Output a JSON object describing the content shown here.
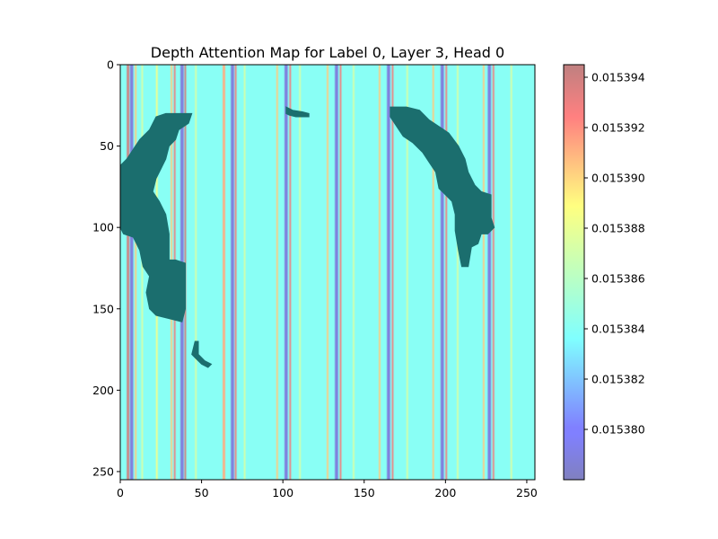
{
  "chart_data": {
    "type": "heatmap",
    "title": "Depth Attention Map for Label 0, Layer 3, Head 0",
    "xlabel": "",
    "ylabel": "",
    "xlim": [
      0,
      255
    ],
    "ylim": [
      255,
      0
    ],
    "x_ticks": [
      0,
      50,
      100,
      150,
      200,
      250
    ],
    "y_ticks": [
      0,
      50,
      100,
      150,
      200,
      250
    ],
    "grid": false,
    "colormap": "jet",
    "alpha": 0.5,
    "colorbar": {
      "min": 0.015378,
      "max": 0.0153945,
      "ticks": [
        0.01538,
        0.015382,
        0.015384,
        0.015386,
        0.015388,
        0.01539,
        0.015392,
        0.015394
      ],
      "tick_labels": [
        "0.015380",
        "0.015382",
        "0.015384",
        "0.015386",
        "0.015388",
        "0.015390",
        "0.015392",
        "0.015394"
      ]
    },
    "background_value": 0.0153845,
    "stripes": [
      {
        "x": 4,
        "w": 1.5,
        "v": 0.015394
      },
      {
        "x": 6,
        "w": 2,
        "v": 0.015379
      },
      {
        "x": 9,
        "w": 1,
        "v": 0.01539
      },
      {
        "x": 13,
        "w": 1,
        "v": 0.015387
      },
      {
        "x": 22,
        "w": 1,
        "v": 0.015388
      },
      {
        "x": 31,
        "w": 1,
        "v": 0.01539
      },
      {
        "x": 33,
        "w": 1,
        "v": 0.015393
      },
      {
        "x": 37,
        "w": 2,
        "v": 0.015379
      },
      {
        "x": 39.5,
        "w": 1,
        "v": 0.015394
      },
      {
        "x": 46,
        "w": 1,
        "v": 0.015387
      },
      {
        "x": 63,
        "w": 1.5,
        "v": 0.015391
      },
      {
        "x": 68,
        "w": 2,
        "v": 0.015379
      },
      {
        "x": 70.5,
        "w": 1,
        "v": 0.015393
      },
      {
        "x": 76,
        "w": 1,
        "v": 0.015387
      },
      {
        "x": 96,
        "w": 1,
        "v": 0.01539
      },
      {
        "x": 101,
        "w": 2,
        "v": 0.015379
      },
      {
        "x": 104,
        "w": 1,
        "v": 0.015393
      },
      {
        "x": 110,
        "w": 1,
        "v": 0.015387
      },
      {
        "x": 127,
        "w": 1,
        "v": 0.01539
      },
      {
        "x": 132,
        "w": 2,
        "v": 0.015379
      },
      {
        "x": 135,
        "w": 1,
        "v": 0.015393
      },
      {
        "x": 143,
        "w": 1,
        "v": 0.015387
      },
      {
        "x": 159,
        "w": 1,
        "v": 0.01539
      },
      {
        "x": 164,
        "w": 2,
        "v": 0.015379
      },
      {
        "x": 167,
        "w": 1,
        "v": 0.015393
      },
      {
        "x": 176,
        "w": 1,
        "v": 0.015387
      },
      {
        "x": 192,
        "w": 1,
        "v": 0.01539
      },
      {
        "x": 197,
        "w": 2,
        "v": 0.015379
      },
      {
        "x": 200,
        "w": 1,
        "v": 0.015393
      },
      {
        "x": 207,
        "w": 1,
        "v": 0.015387
      },
      {
        "x": 223,
        "w": 1,
        "v": 0.01539
      },
      {
        "x": 226,
        "w": 2,
        "v": 0.015379
      },
      {
        "x": 229,
        "w": 1,
        "v": 0.015393
      },
      {
        "x": 240,
        "w": 1,
        "v": 0.015387
      }
    ],
    "overlay_regions": [
      {
        "name": "left-arc",
        "color": "#1b6e6e",
        "points": [
          [
            12,
            46
          ],
          [
            18,
            40
          ],
          [
            22,
            32
          ],
          [
            28,
            30
          ],
          [
            40,
            30
          ],
          [
            44,
            30
          ],
          [
            42,
            36
          ],
          [
            36,
            40
          ],
          [
            34,
            46
          ],
          [
            30,
            50
          ],
          [
            28,
            58
          ],
          [
            25,
            64
          ],
          [
            22,
            70
          ],
          [
            20,
            78
          ],
          [
            24,
            84
          ],
          [
            28,
            92
          ],
          [
            30,
            104
          ],
          [
            30,
            112
          ],
          [
            30,
            120
          ],
          [
            34,
            120
          ],
          [
            40,
            122
          ],
          [
            40,
            136
          ],
          [
            40,
            150
          ],
          [
            38,
            158
          ],
          [
            30,
            156
          ],
          [
            22,
            154
          ],
          [
            18,
            150
          ],
          [
            16,
            140
          ],
          [
            18,
            130
          ],
          [
            14,
            124
          ],
          [
            12,
            114
          ],
          [
            8,
            106
          ],
          [
            2,
            104
          ],
          [
            0,
            100
          ],
          [
            0,
            62
          ],
          [
            4,
            58
          ],
          [
            8,
            52
          ]
        ]
      },
      {
        "name": "small-fleck-top",
        "color": "#1b6e6e",
        "points": [
          [
            102,
            26
          ],
          [
            106,
            28
          ],
          [
            112,
            29
          ],
          [
            116,
            30
          ],
          [
            116,
            32
          ],
          [
            108,
            32
          ],
          [
            104,
            31
          ],
          [
            102,
            30
          ]
        ]
      },
      {
        "name": "right-arc",
        "color": "#1b6e6e",
        "points": [
          [
            166,
            26
          ],
          [
            176,
            26
          ],
          [
            184,
            28
          ],
          [
            190,
            34
          ],
          [
            196,
            38
          ],
          [
            202,
            42
          ],
          [
            208,
            50
          ],
          [
            212,
            58
          ],
          [
            214,
            66
          ],
          [
            218,
            74
          ],
          [
            222,
            78
          ],
          [
            228,
            80
          ],
          [
            228,
            94
          ],
          [
            230,
            100
          ],
          [
            226,
            104
          ],
          [
            222,
            104
          ],
          [
            220,
            110
          ],
          [
            216,
            112
          ],
          [
            214,
            124
          ],
          [
            210,
            124
          ],
          [
            208,
            114
          ],
          [
            206,
            102
          ],
          [
            206,
            92
          ],
          [
            204,
            84
          ],
          [
            200,
            80
          ],
          [
            196,
            76
          ],
          [
            194,
            66
          ],
          [
            190,
            60
          ],
          [
            186,
            54
          ],
          [
            180,
            48
          ],
          [
            174,
            44
          ],
          [
            170,
            38
          ],
          [
            166,
            32
          ]
        ]
      },
      {
        "name": "small-fleck-bottom",
        "color": "#1b6e6e",
        "points": [
          [
            46,
            170
          ],
          [
            48,
            170
          ],
          [
            48,
            178
          ],
          [
            52,
            182
          ],
          [
            56,
            184
          ],
          [
            54,
            186
          ],
          [
            50,
            184
          ],
          [
            46,
            180
          ],
          [
            44,
            178
          ]
        ]
      }
    ]
  }
}
